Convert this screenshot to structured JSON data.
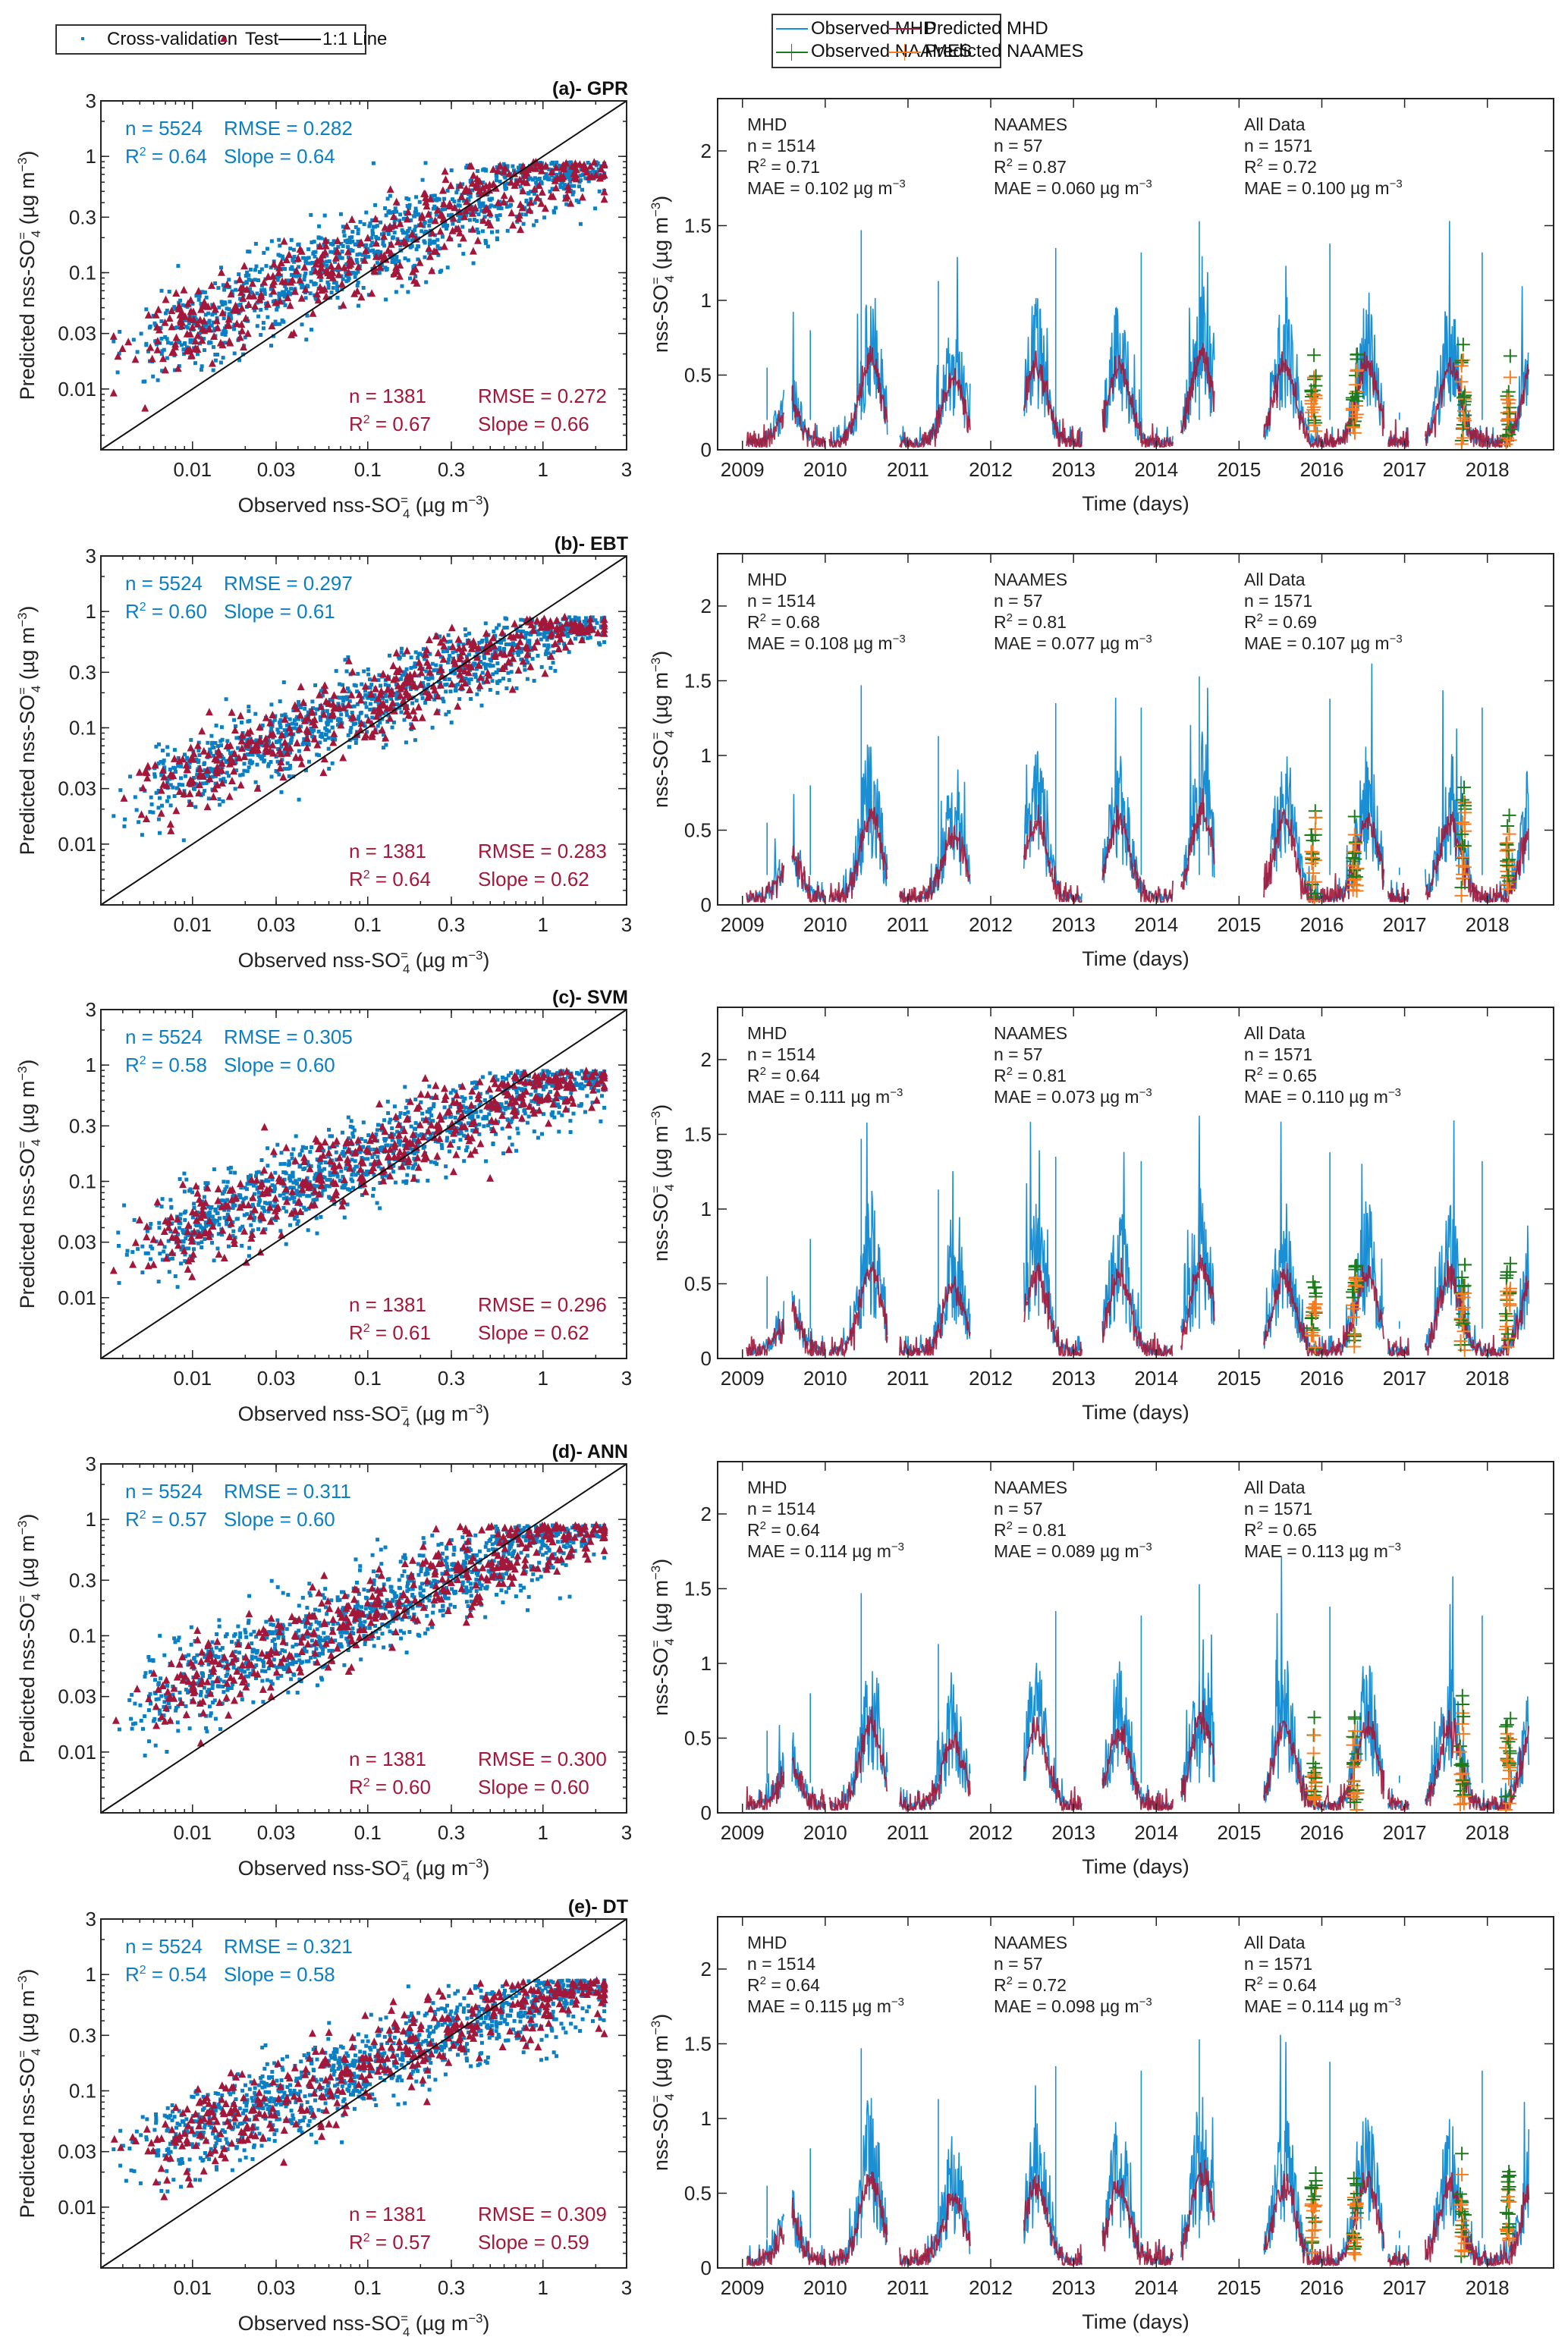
{
  "legends": {
    "scatter": {
      "items": [
        {
          "label": "Cross-validation",
          "marker": "square",
          "color": "#0a7fc4"
        },
        {
          "label": "Test",
          "marker": "triangle",
          "color": "#a3183a"
        },
        {
          "label": "1:1 Line",
          "marker": "line",
          "color": "#111111"
        }
      ]
    },
    "timeseries": {
      "items": [
        {
          "label": "Observed MHD",
          "marker": "line",
          "color": "#1b8fd4"
        },
        {
          "label": "Predicted MHD",
          "marker": "line",
          "color": "#a3183a"
        },
        {
          "label": "Observed NAAMES",
          "marker": "line-plus",
          "color": "#1d7a1d"
        },
        {
          "label": "Predicted NAAMES",
          "marker": "line-plus",
          "color": "#f57c1f"
        }
      ]
    }
  },
  "colors": {
    "cv": "#0a7fc4",
    "test": "#a3183a",
    "obs_mhd": "#1b8fd4",
    "pred_mhd": "#a3183a",
    "obs_naames": "#1d7a1d",
    "pred_naames": "#f57c1f"
  },
  "chart_data": [
    {
      "type": "scatter",
      "panel": "(a)- GPR",
      "title": "(a)- GPR",
      "xlabel": "Observed nss-SO4= (µg m-3)",
      "ylabel": "Predicted nss-SO4= (µg m-3)",
      "xscale": "log",
      "yscale": "log",
      "xlim": [
        0.003,
        3
      ],
      "ylim": [
        0.003,
        3
      ],
      "xticks": [
        "0.01",
        "0.03",
        "0.1",
        "0.3",
        "1",
        "3"
      ],
      "yticks": [
        "0.01",
        "0.03",
        "0.1",
        "0.3",
        "1",
        "3"
      ],
      "cv_stats": {
        "n": "n = 5524",
        "r2": "0.64",
        "rmse": "RMSE = 0.282",
        "slope": "Slope = 0.64"
      },
      "test_stats": {
        "n": "n = 1381",
        "r2": "0.67",
        "rmse": "RMSE = 0.272",
        "slope": "Slope = 0.66"
      },
      "fit_slope": 0.64,
      "spread": 0.34
    },
    {
      "type": "line",
      "panel": "(a)- GPR timeseries",
      "xlabel": "Time (days)",
      "ylabel": "nss-SO4= (µg m-3)",
      "xlim": [
        2008.7,
        2018.8
      ],
      "ylim": [
        0,
        2.35
      ],
      "xticks": [
        "2009",
        "2010",
        "2011",
        "2012",
        "2013",
        "2014",
        "2015",
        "2016",
        "2017",
        "2018"
      ],
      "yticks": [
        "0",
        "0.5",
        "1",
        "1.5",
        "2"
      ],
      "stats": [
        {
          "head": "MHD",
          "n": "n = 1514",
          "r2": "0.71",
          "mae": "MAE = 0.102 µg m"
        },
        {
          "head": "NAAMES",
          "n": "n = 57",
          "r2": "0.87",
          "mae": "MAE = 0.060 µg m"
        },
        {
          "head": "All Data",
          "n": "n = 1571",
          "r2": "0.72",
          "mae": "MAE = 0.100 µg m"
        }
      ]
    },
    {
      "type": "scatter",
      "panel": "(b)- EBT",
      "title": "(b)- EBT",
      "xlabel": "Observed nss-SO4= (µg m-3)",
      "ylabel": "Predicted nss-SO4= (µg m-3)",
      "xscale": "log",
      "yscale": "log",
      "xlim": [
        0.003,
        3
      ],
      "ylim": [
        0.003,
        3
      ],
      "xticks": [
        "0.01",
        "0.03",
        "0.1",
        "0.3",
        "1",
        "3"
      ],
      "yticks": [
        "0.01",
        "0.03",
        "0.1",
        "0.3",
        "1",
        "3"
      ],
      "cv_stats": {
        "n": "n = 5524",
        "r2": "0.60",
        "rmse": "RMSE = 0.297",
        "slope": "Slope = 0.61"
      },
      "test_stats": {
        "n": "n = 1381",
        "r2": "0.64",
        "rmse": "RMSE = 0.283",
        "slope": "Slope = 0.62"
      },
      "fit_slope": 0.61,
      "spread": 0.3
    },
    {
      "type": "line",
      "panel": "(b)- EBT timeseries",
      "xlabel": "Time (days)",
      "ylabel": "nss-SO4= (µg m-3)",
      "xlim": [
        2008.7,
        2018.8
      ],
      "ylim": [
        0,
        2.35
      ],
      "xticks": [
        "2009",
        "2010",
        "2011",
        "2012",
        "2013",
        "2014",
        "2015",
        "2016",
        "2017",
        "2018"
      ],
      "yticks": [
        "0",
        "0.5",
        "1",
        "1.5",
        "2"
      ],
      "stats": [
        {
          "head": "MHD",
          "n": "n = 1514",
          "r2": "0.68",
          "mae": "MAE = 0.108 µg m"
        },
        {
          "head": "NAAMES",
          "n": "n = 57",
          "r2": "0.81",
          "mae": "MAE = 0.077 µg m"
        },
        {
          "head": "All Data",
          "n": "n = 1571",
          "r2": "0.69",
          "mae": "MAE = 0.107 µg m"
        }
      ]
    },
    {
      "type": "scatter",
      "panel": "(c)- SVM",
      "title": "(c)- SVM",
      "xlabel": "Observed nss-SO4= (µg m-3)",
      "ylabel": "Predicted nss-SO4= (µg m-3)",
      "xscale": "log",
      "yscale": "log",
      "xlim": [
        0.003,
        3
      ],
      "ylim": [
        0.003,
        3
      ],
      "xticks": [
        "0.01",
        "0.03",
        "0.1",
        "0.3",
        "1",
        "3"
      ],
      "yticks": [
        "0.01",
        "0.03",
        "0.1",
        "0.3",
        "1",
        "3"
      ],
      "cv_stats": {
        "n": "n = 5524",
        "r2": "0.58",
        "rmse": "RMSE = 0.305",
        "slope": "Slope = 0.60"
      },
      "test_stats": {
        "n": "n = 1381",
        "r2": "0.61",
        "rmse": "RMSE = 0.296",
        "slope": "Slope = 0.62"
      },
      "fit_slope": 0.6,
      "spread": 0.32
    },
    {
      "type": "line",
      "panel": "(c)- SVM timeseries",
      "xlabel": "Time (days)",
      "ylabel": "nss-SO4= (µg m-3)",
      "xlim": [
        2008.7,
        2018.8
      ],
      "ylim": [
        0,
        2.35
      ],
      "xticks": [
        "2009",
        "2010",
        "2011",
        "2012",
        "2013",
        "2014",
        "2015",
        "2016",
        "2017",
        "2018"
      ],
      "yticks": [
        "0",
        "0.5",
        "1",
        "1.5",
        "2"
      ],
      "stats": [
        {
          "head": "MHD",
          "n": "n = 1514",
          "r2": "0.64",
          "mae": "MAE = 0.111 µg m"
        },
        {
          "head": "NAAMES",
          "n": "n = 57",
          "r2": "0.81",
          "mae": "MAE = 0.073 µg m"
        },
        {
          "head": "All Data",
          "n": "n = 1571",
          "r2": "0.65",
          "mae": "MAE = 0.110 µg m"
        }
      ]
    },
    {
      "type": "scatter",
      "panel": "(d)- ANN",
      "title": "(d)- ANN",
      "xlabel": "Observed nss-SO4= (µg m-3)",
      "ylabel": "Predicted nss-SO4= (µg m-3)",
      "xscale": "log",
      "yscale": "log",
      "xlim": [
        0.003,
        3
      ],
      "ylim": [
        0.003,
        3
      ],
      "xticks": [
        "0.01",
        "0.03",
        "0.1",
        "0.3",
        "1",
        "3"
      ],
      "yticks": [
        "0.01",
        "0.03",
        "0.1",
        "0.3",
        "1",
        "3"
      ],
      "cv_stats": {
        "n": "n = 5524",
        "r2": "0.57",
        "rmse": "RMSE = 0.311",
        "slope": "Slope = 0.60"
      },
      "test_stats": {
        "n": "n = 1381",
        "r2": "0.60",
        "rmse": "RMSE = 0.300",
        "slope": "Slope = 0.60"
      },
      "fit_slope": 0.6,
      "spread": 0.34
    },
    {
      "type": "line",
      "panel": "(d)- ANN timeseries",
      "xlabel": "Time (days)",
      "ylabel": "nss-SO4= (µg m-3)",
      "xlim": [
        2008.7,
        2018.8
      ],
      "ylim": [
        0,
        2.35
      ],
      "xticks": [
        "2009",
        "2010",
        "2011",
        "2012",
        "2013",
        "2014",
        "2015",
        "2016",
        "2017",
        "2018"
      ],
      "yticks": [
        "0",
        "0.5",
        "1",
        "1.5",
        "2"
      ],
      "stats": [
        {
          "head": "MHD",
          "n": "n = 1514",
          "r2": "0.64",
          "mae": "MAE = 0.114 µg m"
        },
        {
          "head": "NAAMES",
          "n": "n = 57",
          "r2": "0.81",
          "mae": "MAE = 0.089 µg m"
        },
        {
          "head": "All Data",
          "n": "n = 1571",
          "r2": "0.65",
          "mae": "MAE = 0.113 µg m"
        }
      ]
    },
    {
      "type": "scatter",
      "panel": "(e)- DT",
      "title": "(e)- DT",
      "xlabel": "Observed nss-SO4= (µg m-3)",
      "ylabel": "Predicted nss-SO4= (µg m-3)",
      "xscale": "log",
      "yscale": "log",
      "xlim": [
        0.003,
        3
      ],
      "ylim": [
        0.003,
        3
      ],
      "xticks": [
        "0.01",
        "0.03",
        "0.1",
        "0.3",
        "1",
        "3"
      ],
      "yticks": [
        "0.01",
        "0.03",
        "0.1",
        "0.3",
        "1",
        "3"
      ],
      "cv_stats": {
        "n": "n = 5524",
        "r2": "0.54",
        "rmse": "RMSE = 0.321",
        "slope": "Slope = 0.58"
      },
      "test_stats": {
        "n": "n = 1381",
        "r2": "0.57",
        "rmse": "RMSE = 0.309",
        "slope": "Slope = 0.59"
      },
      "fit_slope": 0.58,
      "spread": 0.33
    },
    {
      "type": "line",
      "panel": "(e)- DT timeseries",
      "xlabel": "Time (days)",
      "ylabel": "nss-SO4= (µg m-3)",
      "xlim": [
        2008.7,
        2018.8
      ],
      "ylim": [
        0,
        2.35
      ],
      "xticks": [
        "2009",
        "2010",
        "2011",
        "2012",
        "2013",
        "2014",
        "2015",
        "2016",
        "2017",
        "2018"
      ],
      "yticks": [
        "0",
        "0.5",
        "1",
        "1.5",
        "2"
      ],
      "stats": [
        {
          "head": "MHD",
          "n": "n = 1514",
          "r2": "0.64",
          "mae": "MAE = 0.115 µg m"
        },
        {
          "head": "NAAMES",
          "n": "n = 57",
          "r2": "0.72",
          "mae": "MAE = 0.098 µg m"
        },
        {
          "head": "All Data",
          "n": "n = 1571",
          "r2": "0.64",
          "mae": "MAE = 0.114 µg m"
        }
      ]
    }
  ],
  "seasons_mhd": [
    {
      "start": 2009.05,
      "end": 2009.5,
      "peak": 0.55
    },
    {
      "start": 2009.6,
      "end": 2010.0,
      "peak": 0.8
    },
    {
      "start": 2010.05,
      "end": 2010.75,
      "peak": 1.47
    },
    {
      "start": 2010.9,
      "end": 2011.75,
      "peak": 1.13
    },
    {
      "start": 2012.4,
      "end": 2013.1,
      "peak": 1.35
    },
    {
      "start": 2013.35,
      "end": 2014.2,
      "peak": 1.32
    },
    {
      "start": 2014.3,
      "end": 2014.7,
      "peak": 1.53
    },
    {
      "start": 2015.3,
      "end": 2016.75,
      "peak": 1.38
    },
    {
      "start": 2016.8,
      "end": 2017.05,
      "peak": 0.25
    },
    {
      "start": 2017.25,
      "end": 2018.5,
      "peak": 1.32
    }
  ],
  "naames_campaigns": [
    2015.9,
    2016.4,
    2017.7,
    2018.25
  ]
}
